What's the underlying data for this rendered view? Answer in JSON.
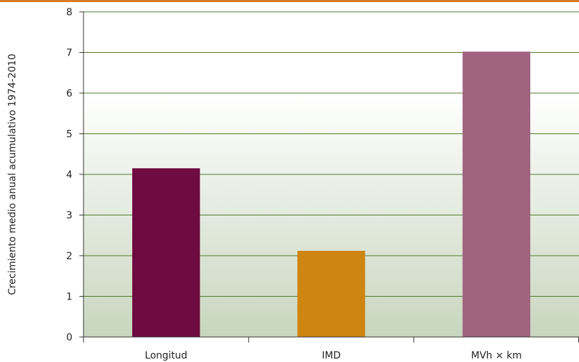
{
  "colors": {
    "top_rule": "#D97A1E",
    "grid": "#4F7A28",
    "axis": "#333333",
    "plot_bg_top": "#FFFFFF",
    "plot_bg_bottom": "#C8D6BE"
  },
  "chart_data": {
    "type": "bar",
    "title": "",
    "xlabel": "",
    "ylabel": "Crecimiento medio anual acumulativo 1974-2010",
    "categories": [
      "Longitud",
      "IMD",
      "MVh × km"
    ],
    "values": [
      4.15,
      2.12,
      7.02
    ],
    "bar_colors": [
      "#6E0C41",
      "#CE8512",
      "#A06380"
    ],
    "ylim": [
      0,
      8
    ],
    "yticks": [
      "0",
      "1",
      "2",
      "3",
      "4",
      "5",
      "6",
      "7",
      "8"
    ],
    "grid": true,
    "legend": "none"
  }
}
